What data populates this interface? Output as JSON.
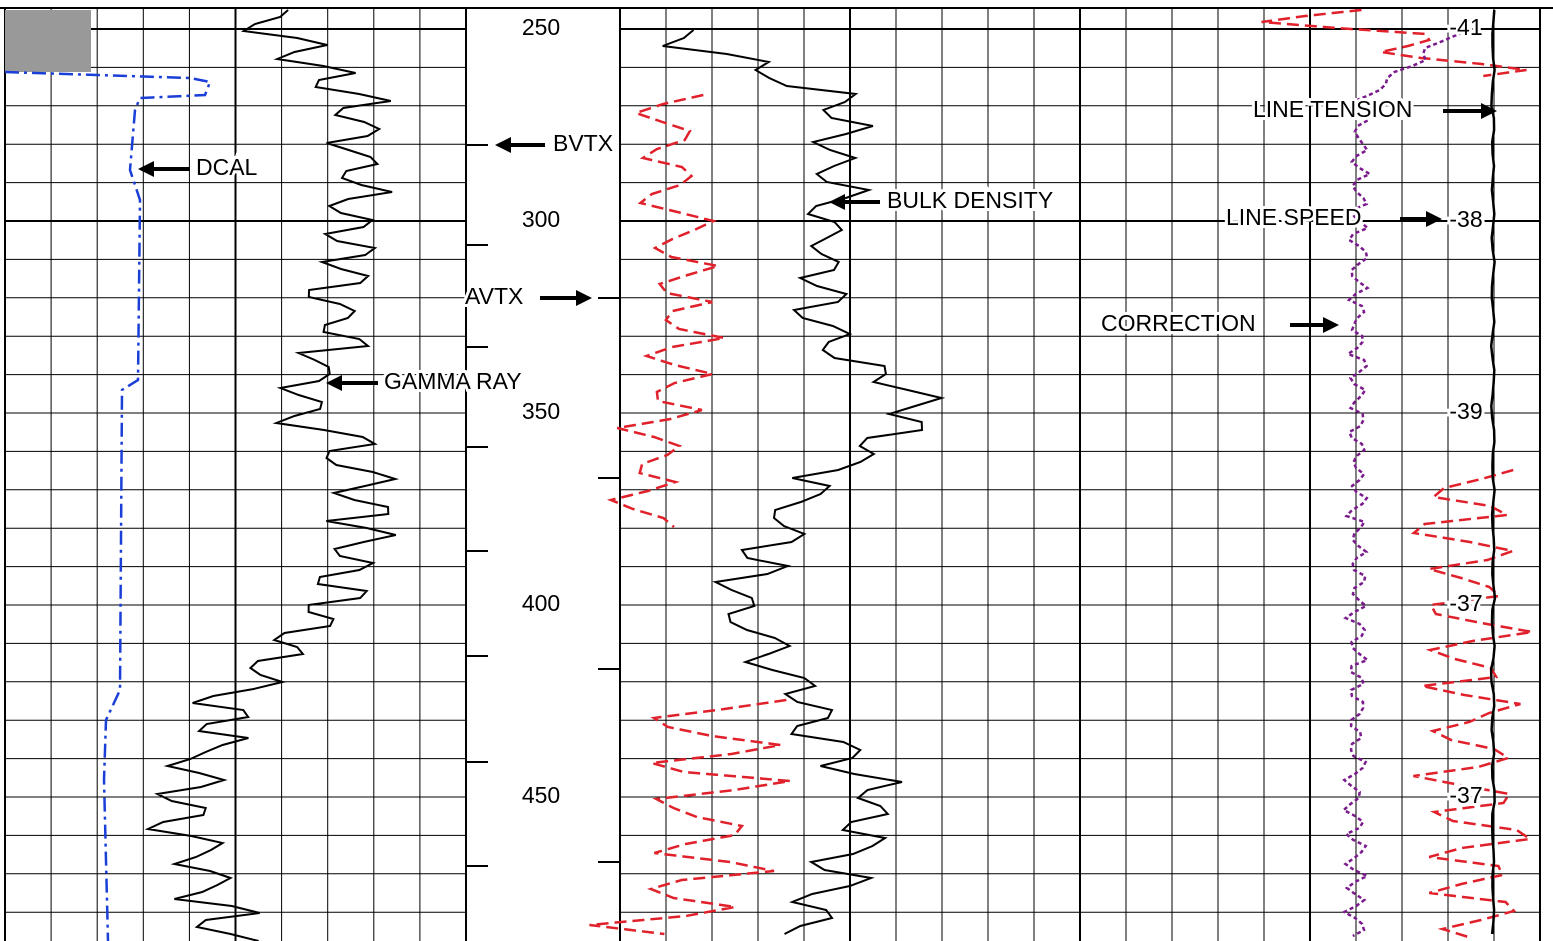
{
  "depth_labels": [
    "250",
    "300",
    "350",
    "400",
    "450"
  ],
  "tension_labels": [
    "-41",
    "-38",
    "-39",
    "-37",
    "-37"
  ],
  "curve_labels": {
    "dcal": "DCAL",
    "gamma_ray": "GAMMA RAY",
    "bvtx": "BVTX",
    "avtx": "AVTX",
    "bulk_density": "BULK DENSITY",
    "line_tension": "LINE TENSION",
    "line_speed": "LINE SPEED",
    "correction": "CORRECTION"
  }
}
